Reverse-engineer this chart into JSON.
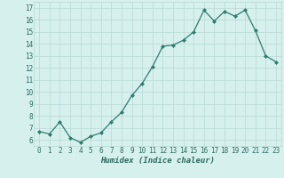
{
  "x": [
    0,
    1,
    2,
    3,
    4,
    5,
    6,
    7,
    8,
    9,
    10,
    11,
    12,
    13,
    14,
    15,
    16,
    17,
    18,
    19,
    20,
    21,
    22,
    23
  ],
  "y": [
    6.7,
    6.5,
    7.5,
    6.2,
    5.8,
    6.3,
    6.6,
    7.5,
    8.3,
    9.7,
    10.7,
    12.1,
    13.8,
    13.9,
    14.3,
    15.0,
    16.8,
    15.9,
    16.7,
    16.3,
    16.8,
    15.1,
    13.0,
    12.5
  ],
  "xlabel": "Humidex (Indice chaleur)",
  "ylim": [
    5.5,
    17.5
  ],
  "xlim": [
    -0.5,
    23.5
  ],
  "yticks": [
    6,
    7,
    8,
    9,
    10,
    11,
    12,
    13,
    14,
    15,
    16,
    17
  ],
  "xticks": [
    0,
    1,
    2,
    3,
    4,
    5,
    6,
    7,
    8,
    9,
    10,
    11,
    12,
    13,
    14,
    15,
    16,
    17,
    18,
    19,
    20,
    21,
    22,
    23
  ],
  "xtick_labels": [
    "0",
    "1",
    "2",
    "3",
    "4",
    "5",
    "6",
    "7",
    "8",
    "9",
    "10",
    "11",
    "12",
    "13",
    "14",
    "15",
    "16",
    "17",
    "18",
    "19",
    "20",
    "21",
    "22",
    "23"
  ],
  "line_color": "#2e7d6e",
  "marker": "D",
  "marker_size": 2.0,
  "bg_color": "#d6f0ee",
  "grid_color": "#b8d8d4",
  "label_color": "#2e6b5e",
  "tick_fontsize": 5.5,
  "xlabel_fontsize": 6.5
}
